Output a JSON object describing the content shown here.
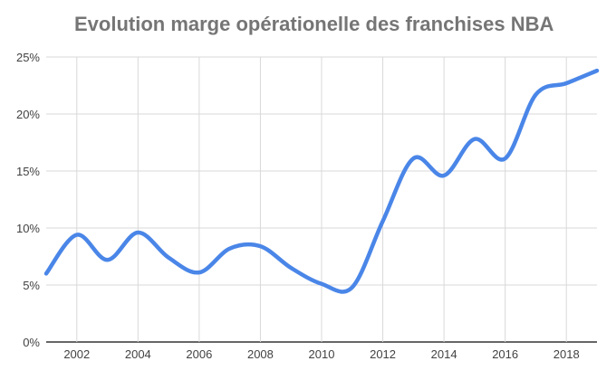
{
  "chart_data": {
    "type": "line",
    "title": "Evolution marge opérationelle des franchises NBA",
    "xlabel": "",
    "ylabel": "",
    "x": [
      2001,
      2002,
      2003,
      2004,
      2005,
      2006,
      2007,
      2008,
      2009,
      2010,
      2011,
      2012,
      2013,
      2014,
      2015,
      2016,
      2017,
      2018,
      2019
    ],
    "series": [
      {
        "values": [
          6.0,
          9.4,
          7.2,
          9.6,
          7.4,
          6.1,
          8.2,
          8.4,
          6.5,
          5.1,
          4.8,
          10.6,
          16.1,
          14.6,
          17.8,
          16.1,
          21.7,
          22.7,
          23.8
        ],
        "color": "#4a86e8"
      }
    ],
    "xlim": [
      2001,
      2019
    ],
    "ylim": [
      0,
      25
    ],
    "x_ticks": [
      2002,
      2004,
      2006,
      2008,
      2010,
      2012,
      2014,
      2016,
      2018
    ],
    "x_tick_labels": [
      "2002",
      "2004",
      "2006",
      "2008",
      "2010",
      "2012",
      "2014",
      "2016",
      "2018"
    ],
    "y_ticks": [
      0,
      5,
      10,
      15,
      20,
      25
    ],
    "y_tick_labels": [
      "0%",
      "5%",
      "10%",
      "15%",
      "20%",
      "25%"
    ],
    "grid": true,
    "legend": "none",
    "colors": {
      "gridline": "#d9d9d9",
      "baseline": "#333333"
    }
  }
}
